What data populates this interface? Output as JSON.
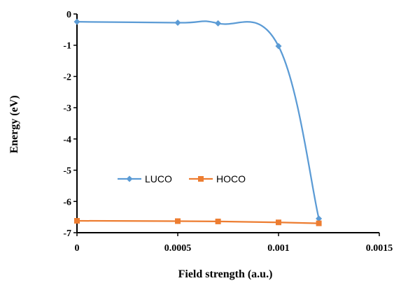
{
  "chart_data": {
    "type": "line",
    "xlabel": "Field strength (a.u.)",
    "ylabel": "Energy (eV)",
    "xlim": [
      0,
      0.0015
    ],
    "ylim": [
      -7,
      0
    ],
    "x_ticks": [
      0,
      0.0005,
      0.001,
      0.0015
    ],
    "x_tick_labels": [
      "0",
      "0.0005",
      "0.001",
      "0.0015"
    ],
    "y_ticks": [
      0,
      -1,
      -2,
      -3,
      -4,
      -5,
      -6,
      -7
    ],
    "y_tick_labels": [
      "0",
      "-1",
      "-2",
      "-3",
      "-4",
      "-5",
      "-6",
      "-7"
    ],
    "grid": false,
    "legend_position": "inside-left-lower",
    "series": [
      {
        "name": "LUCO",
        "color": "#5b9bd5",
        "marker": "diamond",
        "smooth": true,
        "x": [
          0,
          0.0005,
          0.0007,
          0.001,
          0.0012
        ],
        "y": [
          -0.25,
          -0.28,
          -0.3,
          -1.03,
          -6.55
        ]
      },
      {
        "name": "HOCO",
        "color": "#ed7d31",
        "marker": "square",
        "smooth": false,
        "x": [
          0,
          0.0005,
          0.0007,
          0.001,
          0.0012
        ],
        "y": [
          -6.62,
          -6.63,
          -6.64,
          -6.67,
          -6.7
        ]
      }
    ]
  }
}
